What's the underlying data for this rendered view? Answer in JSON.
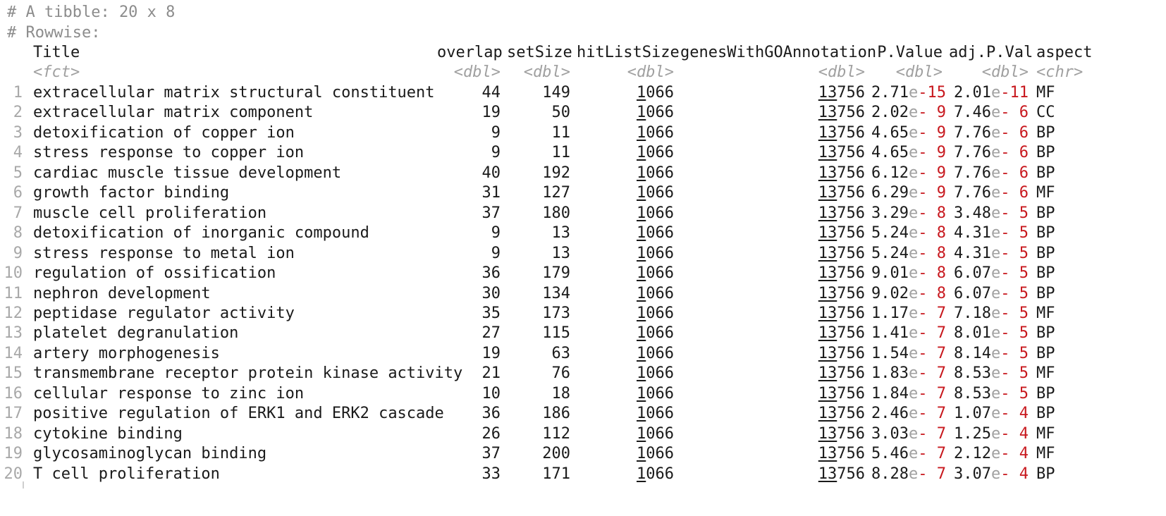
{
  "header": {
    "tibble_info": "# A tibble: 20 x 8",
    "rowwise_info": "# Rowwise:"
  },
  "columns": [
    {
      "name": "Title",
      "type": "<fct>"
    },
    {
      "name": "overlap",
      "type": "<dbl>"
    },
    {
      "name": "setSize",
      "type": "<dbl>"
    },
    {
      "name": "hitListSize",
      "type": "<dbl>"
    },
    {
      "name": "genesWithGOAnnotation",
      "type": "<dbl>"
    },
    {
      "name": "P.Value",
      "type": "<dbl>"
    },
    {
      "name": "adj.P.Val",
      "type": "<dbl>"
    },
    {
      "name": "aspect",
      "type": "<chr>"
    }
  ],
  "rows": [
    {
      "num": "1",
      "title": "extracellular matrix structural constituent",
      "overlap": "44",
      "setSize": "149",
      "hitListSize": "1066",
      "genesWithGOAnnotation": "13756",
      "pvalue": "2.71e-15",
      "adjp": "2.01e-11",
      "aspect": "MF"
    },
    {
      "num": "2",
      "title": "extracellular matrix component",
      "overlap": "19",
      "setSize": "50",
      "hitListSize": "1066",
      "genesWithGOAnnotation": "13756",
      "pvalue": "2.02e- 9",
      "adjp": "7.46e- 6",
      "aspect": "CC"
    },
    {
      "num": "3",
      "title": "detoxification of copper ion",
      "overlap": "9",
      "setSize": "11",
      "hitListSize": "1066",
      "genesWithGOAnnotation": "13756",
      "pvalue": "4.65e- 9",
      "adjp": "7.76e- 6",
      "aspect": "BP"
    },
    {
      "num": "4",
      "title": "stress response to copper ion",
      "overlap": "9",
      "setSize": "11",
      "hitListSize": "1066",
      "genesWithGOAnnotation": "13756",
      "pvalue": "4.65e- 9",
      "adjp": "7.76e- 6",
      "aspect": "BP"
    },
    {
      "num": "5",
      "title": "cardiac muscle tissue development",
      "overlap": "40",
      "setSize": "192",
      "hitListSize": "1066",
      "genesWithGOAnnotation": "13756",
      "pvalue": "6.12e- 9",
      "adjp": "7.76e- 6",
      "aspect": "BP"
    },
    {
      "num": "6",
      "title": "growth factor binding",
      "overlap": "31",
      "setSize": "127",
      "hitListSize": "1066",
      "genesWithGOAnnotation": "13756",
      "pvalue": "6.29e- 9",
      "adjp": "7.76e- 6",
      "aspect": "MF"
    },
    {
      "num": "7",
      "title": "muscle cell proliferation",
      "overlap": "37",
      "setSize": "180",
      "hitListSize": "1066",
      "genesWithGOAnnotation": "13756",
      "pvalue": "3.29e- 8",
      "adjp": "3.48e- 5",
      "aspect": "BP"
    },
    {
      "num": "8",
      "title": "detoxification of inorganic compound",
      "overlap": "9",
      "setSize": "13",
      "hitListSize": "1066",
      "genesWithGOAnnotation": "13756",
      "pvalue": "5.24e- 8",
      "adjp": "4.31e- 5",
      "aspect": "BP"
    },
    {
      "num": "9",
      "title": "stress response to metal ion",
      "overlap": "9",
      "setSize": "13",
      "hitListSize": "1066",
      "genesWithGOAnnotation": "13756",
      "pvalue": "5.24e- 8",
      "adjp": "4.31e- 5",
      "aspect": "BP"
    },
    {
      "num": "10",
      "title": "regulation of ossification",
      "overlap": "36",
      "setSize": "179",
      "hitListSize": "1066",
      "genesWithGOAnnotation": "13756",
      "pvalue": "9.01e- 8",
      "adjp": "6.07e- 5",
      "aspect": "BP"
    },
    {
      "num": "11",
      "title": "nephron development",
      "overlap": "30",
      "setSize": "134",
      "hitListSize": "1066",
      "genesWithGOAnnotation": "13756",
      "pvalue": "9.02e- 8",
      "adjp": "6.07e- 5",
      "aspect": "BP"
    },
    {
      "num": "12",
      "title": "peptidase regulator activity",
      "overlap": "35",
      "setSize": "173",
      "hitListSize": "1066",
      "genesWithGOAnnotation": "13756",
      "pvalue": "1.17e- 7",
      "adjp": "7.18e- 5",
      "aspect": "MF"
    },
    {
      "num": "13",
      "title": "platelet degranulation",
      "overlap": "27",
      "setSize": "115",
      "hitListSize": "1066",
      "genesWithGOAnnotation": "13756",
      "pvalue": "1.41e- 7",
      "adjp": "8.01e- 5",
      "aspect": "BP"
    },
    {
      "num": "14",
      "title": "artery morphogenesis",
      "overlap": "19",
      "setSize": "63",
      "hitListSize": "1066",
      "genesWithGOAnnotation": "13756",
      "pvalue": "1.54e- 7",
      "adjp": "8.14e- 5",
      "aspect": "BP"
    },
    {
      "num": "15",
      "title": "transmembrane receptor protein kinase activity",
      "overlap": "21",
      "setSize": "76",
      "hitListSize": "1066",
      "genesWithGOAnnotation": "13756",
      "pvalue": "1.83e- 7",
      "adjp": "8.53e- 5",
      "aspect": "MF"
    },
    {
      "num": "16",
      "title": "cellular response to zinc ion",
      "overlap": "10",
      "setSize": "18",
      "hitListSize": "1066",
      "genesWithGOAnnotation": "13756",
      "pvalue": "1.84e- 7",
      "adjp": "8.53e- 5",
      "aspect": "BP"
    },
    {
      "num": "17",
      "title": "positive regulation of ERK1 and ERK2 cascade",
      "overlap": "36",
      "setSize": "186",
      "hitListSize": "1066",
      "genesWithGOAnnotation": "13756",
      "pvalue": "2.46e- 7",
      "adjp": "1.07e- 4",
      "aspect": "BP"
    },
    {
      "num": "18",
      "title": "cytokine binding",
      "overlap": "26",
      "setSize": "112",
      "hitListSize": "1066",
      "genesWithGOAnnotation": "13756",
      "pvalue": "3.03e- 7",
      "adjp": "1.25e- 4",
      "aspect": "MF"
    },
    {
      "num": "19",
      "title": "glycosaminoglycan binding",
      "overlap": "37",
      "setSize": "200",
      "hitListSize": "1066",
      "genesWithGOAnnotation": "13756",
      "pvalue": "5.46e- 7",
      "adjp": "2.12e- 4",
      "aspect": "MF"
    },
    {
      "num": "20",
      "title": "T cell proliferation",
      "overlap": "33",
      "setSize": "171",
      "hitListSize": "1066",
      "genesWithGOAnnotation": "13756",
      "pvalue": "8.28e- 7",
      "adjp": "3.07e- 4",
      "aspect": "BP"
    }
  ],
  "colors": {
    "text": "#1a1a1a",
    "comment": "#8c8c8c",
    "type_hint": "#a0a0a0",
    "exponent": "#c8181e"
  }
}
